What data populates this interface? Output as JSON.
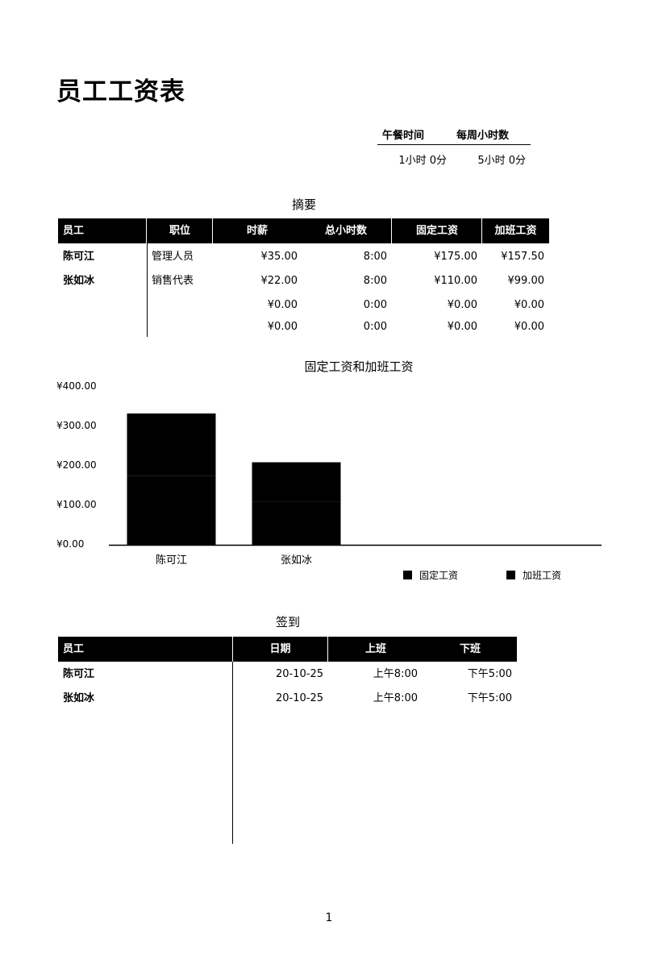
{
  "document": {
    "title": "员工工资表",
    "page_number": "1"
  },
  "hours_info": {
    "lunch_label": "午餐时间",
    "weekly_label": "每周小时数",
    "lunch_value": "1小时 0分",
    "weekly_value": "5小时 0分"
  },
  "summary": {
    "title": "摘要",
    "headers": [
      "员工",
      "职位",
      "时薪",
      "总小时数",
      "固定工资",
      "加班工资"
    ],
    "rows": [
      [
        "陈可江",
        "管理人员",
        "¥35.00",
        "8:00",
        "¥175.00",
        "¥157.50"
      ],
      [
        "张如冰",
        "销售代表",
        "¥22.00",
        "8:00",
        "¥110.00",
        "¥99.00"
      ],
      [
        "",
        "",
        "¥0.00",
        "0:00",
        "¥0.00",
        "¥0.00"
      ],
      [
        "",
        "",
        "¥0.00",
        "0:00",
        "¥0.00",
        "¥0.00"
      ]
    ]
  },
  "chart_data": {
    "type": "bar",
    "stacked": true,
    "title": "固定工资和加班工资",
    "categories": [
      "陈可江",
      "张如冰",
      "",
      ""
    ],
    "series": [
      {
        "name": "固定工资",
        "values": [
          175.0,
          110.0,
          0,
          0
        ]
      },
      {
        "name": "加班工资",
        "values": [
          157.5,
          99.0,
          0,
          0
        ]
      }
    ],
    "y_ticks": [
      "¥0.00",
      "¥100.00",
      "¥200.00",
      "¥300.00",
      "¥400.00"
    ],
    "ylim": [
      0,
      400
    ],
    "legend_position": "bottom-right",
    "grid": false,
    "bar_color": "#000000"
  },
  "checkin": {
    "title": "签到",
    "headers": [
      "员工",
      "日期",
      "上班",
      "下班"
    ],
    "rows": [
      [
        "陈可江",
        "20-10-25",
        "上午8:00",
        "下午5:00"
      ],
      [
        "张如冰",
        "20-10-25",
        "上午8:00",
        "下午5:00"
      ]
    ]
  }
}
